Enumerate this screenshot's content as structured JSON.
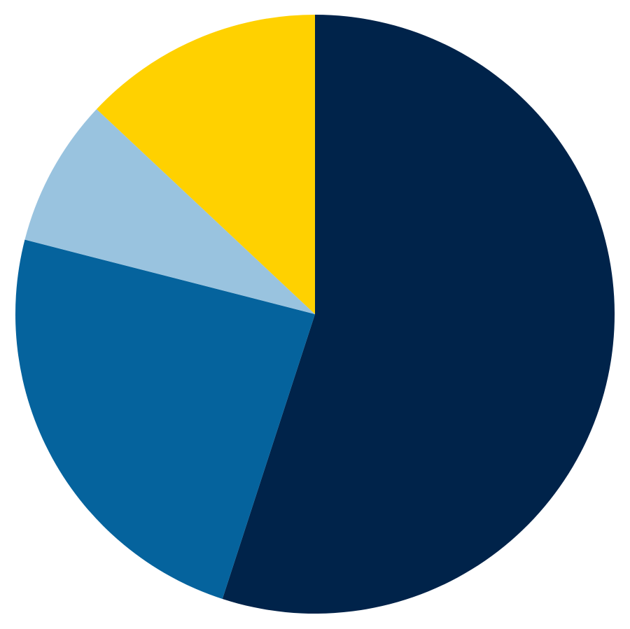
{
  "chart_data": {
    "type": "pie",
    "title": "",
    "start_angle": "top",
    "direction": "clockwise",
    "legend": "none",
    "slices": [
      {
        "value": 55,
        "color": "#00234A"
      },
      {
        "value": 24,
        "color": "#05639D"
      },
      {
        "value": 8,
        "color": "#99C3DF"
      },
      {
        "value": 13,
        "color": "#FFD100"
      }
    ]
  }
}
